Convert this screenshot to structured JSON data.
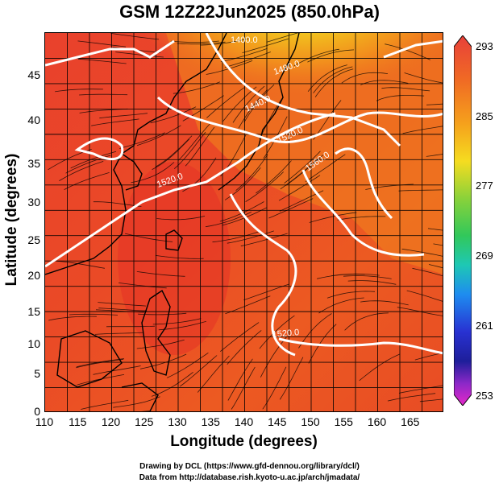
{
  "title": "GSM 12Z22Jun2025 (850.0hPa)",
  "x_axis": {
    "label": "Longitude (degrees)",
    "ticks": [
      "110",
      "115",
      "120",
      "125",
      "130",
      "135",
      "140",
      "145",
      "150",
      "155",
      "160",
      "165"
    ],
    "range": [
      110,
      170
    ]
  },
  "y_axis": {
    "label": "Latitude  (degrees)",
    "ticks": [
      "0",
      "5",
      "10",
      "15",
      "20",
      "25",
      "30",
      "35",
      "40",
      "45"
    ],
    "range": [
      0,
      50
    ]
  },
  "colorbar": {
    "ticks": [
      "293",
      "285",
      "277",
      "269",
      "261",
      "253"
    ],
    "range": [
      253,
      293
    ]
  },
  "contours": [
    {
      "label": "1520.0"
    },
    {
      "label": "1520.0"
    },
    {
      "label": "1560.0"
    },
    {
      "label": "1480.0"
    },
    {
      "label": "1440.0"
    },
    {
      "label": "1520.0"
    },
    {
      "label": "1400.0"
    }
  ],
  "credits": {
    "line1": "Drawing by DCL (https://www.gfd-dennou.org/library/dcl/)",
    "line2": "Data from http://database.rish.kyoto-u.ac.jp/arch/jmadata/"
  },
  "colors": {
    "warm": "#e83a2a",
    "orange": "#f07a1e",
    "yellow": "#f5d020",
    "green": "#8cd23c",
    "contour": "#ffffff",
    "coast": "#000000"
  }
}
